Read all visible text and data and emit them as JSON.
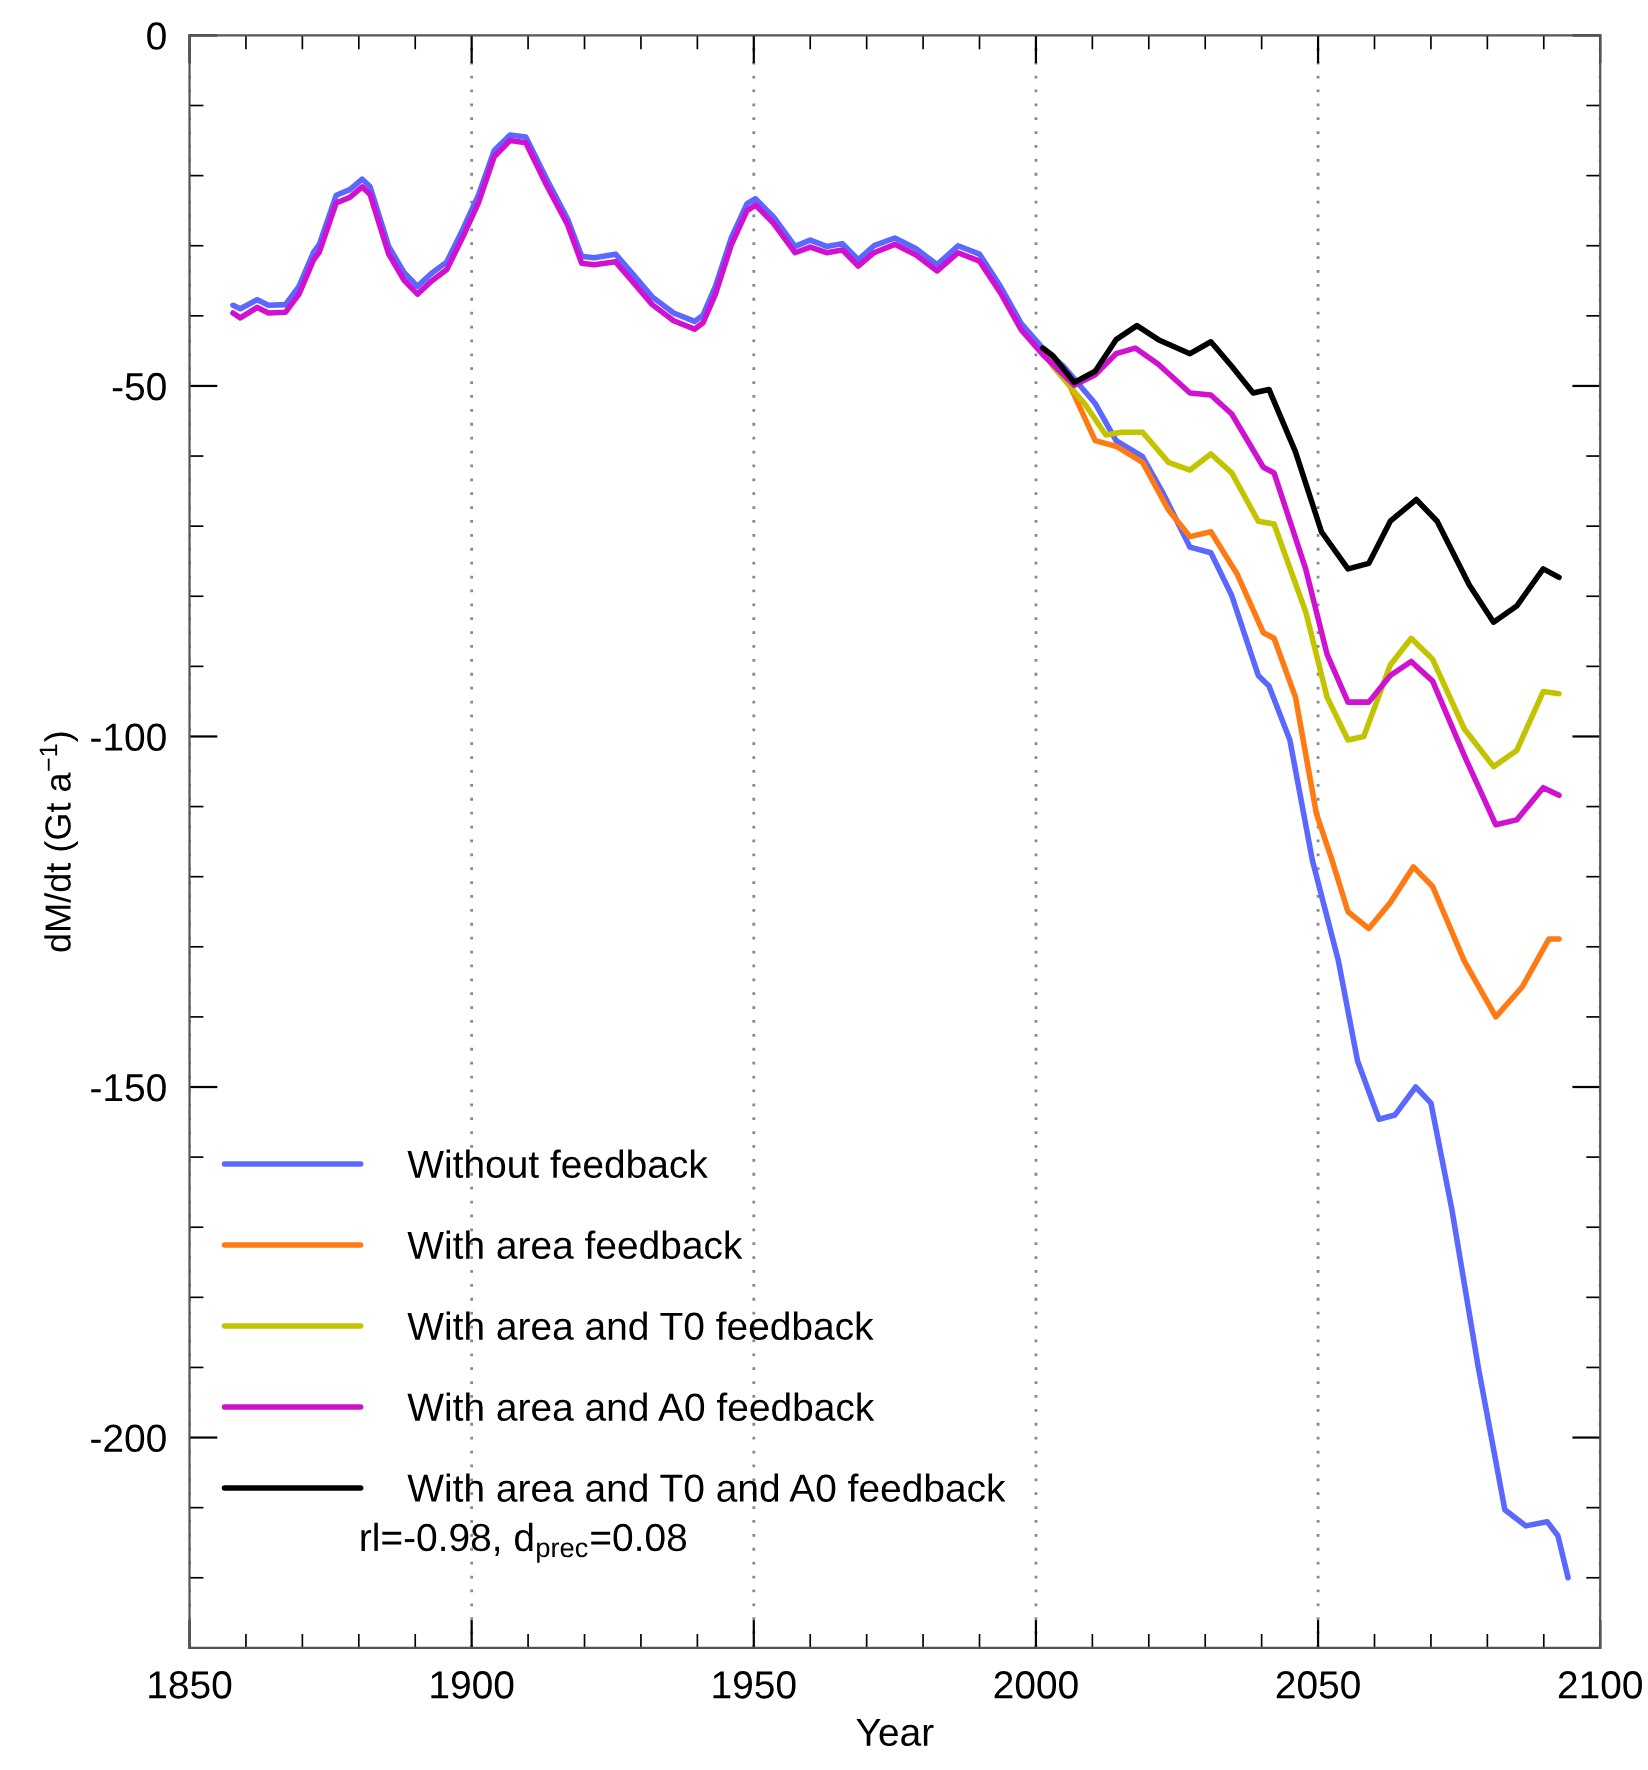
{
  "chart_data": {
    "type": "line",
    "xlabel": "Year",
    "ylabel": "dM/dt (Gt a$^{−1}$)",
    "xlim": [
      1850,
      2100
    ],
    "xticks": [
      1850,
      1900,
      1950,
      2000,
      2050,
      2100
    ],
    "ylim": [
      -230,
      0
    ],
    "yticks": [
      -200,
      -150,
      -100,
      -50,
      0
    ],
    "grid": "x",
    "legend": "bottom left",
    "line_style": "solid",
    "marker": "none",
    "annotations": [
      "rl=-0.98, d$_{prec}$=0.08"
    ],
    "series": [
      {
        "name": "Without feedback",
        "color": "#5b68ff",
        "x": [
          1857.7,
          1859,
          1862,
          1864,
          1867,
          1869.4,
          1872,
          1873,
          1876,
          1878.4,
          1880.6,
          1882,
          1885.3,
          1888,
          1890.4,
          1892.8,
          1895.6,
          1898.4,
          1901.2,
          1904,
          1906.8,
          1909.6,
          1913.3,
          1917,
          1919.5,
          1921.7,
          1925.5,
          1928.3,
          1932,
          1935.8,
          1939.5,
          1941,
          1943.2,
          1946,
          1948.8,
          1950.3,
          1953.5,
          1957.3,
          1960,
          1962.9,
          1965.7,
          1968.5,
          1971.3,
          1975,
          1978.7,
          1982.5,
          1986.2,
          1990,
          1993.7,
          1997.4,
          2001.2,
          2004.9,
          2010.5,
          2014.2,
          2018.9,
          2022.6,
          2027.3,
          2031,
          2034.7,
          2039.4,
          2041.3,
          2045,
          2049,
          2053.6,
          2057,
          2060.8,
          2063.6,
          2067.3,
          2070,
          2073.7,
          2078.4,
          2083.1,
          2086.8,
          2090.6,
          2092.5,
          2094.3
        ],
        "values": [
          -38.5,
          -39,
          -37.7,
          -38.5,
          -38.4,
          -35.8,
          -30.9,
          -29.8,
          -22.8,
          -22,
          -20.5,
          -21.6,
          -30.1,
          -33.8,
          -35.8,
          -34,
          -32.3,
          -27.7,
          -22.8,
          -16.4,
          -14.2,
          -14.5,
          -20.5,
          -26.2,
          -31.5,
          -31.7,
          -31.2,
          -33.8,
          -37.3,
          -39.6,
          -40.8,
          -39.9,
          -35.8,
          -28.9,
          -24,
          -23.3,
          -25.9,
          -30.1,
          -29.2,
          -30.1,
          -29.7,
          -32,
          -30,
          -28.9,
          -30.4,
          -32.7,
          -30,
          -31.2,
          -35.8,
          -41.1,
          -44.6,
          -47.2,
          -52.5,
          -57.8,
          -60.1,
          -65.4,
          -73,
          -73.8,
          -79.9,
          -91.3,
          -92.8,
          -100.5,
          -117.7,
          -132,
          -146.3,
          -154.6,
          -154,
          -150,
          -152.3,
          -167.4,
          -190,
          -210.3,
          -212.6,
          -212,
          -214,
          -220
        ]
      },
      {
        "name": "With area feedback",
        "color": "#ff7a12",
        "x": [
          2001.2,
          2004.9,
          2010.5,
          2014.2,
          2018.9,
          2023.5,
          2027.3,
          2031,
          2035.7,
          2040.3,
          2042.2,
          2046,
          2049.7,
          2052.5,
          2055.3,
          2059,
          2062.8,
          2066.9,
          2070.3,
          2075.9,
          2081.5,
          2086.2,
          2090.9,
          2092.7
        ],
        "values": [
          -45,
          -48,
          -57.8,
          -58.6,
          -60.9,
          -67.7,
          -71.5,
          -70.8,
          -76.9,
          -85.2,
          -86,
          -94.4,
          -111,
          -117.7,
          -125,
          -127.4,
          -123.7,
          -118.6,
          -121.4,
          -132,
          -140,
          -135.7,
          -128.9,
          -128.9
        ]
      },
      {
        "name": "With area and T0 feedback",
        "color": "#c2c400",
        "x": [
          2001.2,
          2003,
          2008.6,
          2012.4,
          2015.1,
          2018.9,
          2023.5,
          2027.3,
          2031,
          2034.7,
          2039.4,
          2042.2,
          2047.8,
          2051.6,
          2055.3,
          2058.1,
          2062.8,
          2066.5,
          2070.3,
          2075.9,
          2081.1,
          2085.2,
          2089.9,
          2092.7
        ],
        "values": [
          -45,
          -47.2,
          -52.5,
          -57,
          -56.6,
          -56.6,
          -60.9,
          -62,
          -59.7,
          -62.4,
          -69.3,
          -69.7,
          -82.2,
          -94.4,
          -100.5,
          -100,
          -89.8,
          -86,
          -89,
          -98.9,
          -104.3,
          -102,
          -93.6,
          -93.9
        ]
      },
      {
        "name": "With area and A0 feedback",
        "color": "#d012d0",
        "x": [
          1857.7,
          1859,
          1862,
          1864,
          1867,
          1869.4,
          1872,
          1873,
          1876,
          1878.4,
          1880.6,
          1882,
          1885.3,
          1888,
          1890.4,
          1892.8,
          1895.6,
          1898.4,
          1901.2,
          1904,
          1906.8,
          1909.6,
          1913.3,
          1917,
          1919.5,
          1921.7,
          1925.5,
          1928.3,
          1932,
          1935.8,
          1939.5,
          1941,
          1943.2,
          1946,
          1948.8,
          1950.3,
          1953.5,
          1957.3,
          1960,
          1962.9,
          1965.7,
          1968.5,
          1971.3,
          1975,
          1978.7,
          1982.5,
          1986.2,
          1990,
          1993.7,
          1997.4,
          2001.2,
          2006.8,
          2010.5,
          2014.2,
          2017.6,
          2021.7,
          2027.3,
          2031,
          2034.7,
          2040.3,
          2042.2,
          2047.8,
          2051.6,
          2055.3,
          2059,
          2062.8,
          2066.5,
          2070.3,
          2075.9,
          2081.5,
          2085.2,
          2089.9,
          2092.7
        ],
        "values": [
          -39.6,
          -40.3,
          -38.8,
          -39.6,
          -39.5,
          -36.9,
          -32,
          -30.9,
          -23.9,
          -23.1,
          -21.6,
          -22.7,
          -31.2,
          -34.9,
          -36.9,
          -35.1,
          -33.4,
          -28.8,
          -23.9,
          -17.3,
          -15,
          -15.3,
          -21.4,
          -27,
          -32.5,
          -32.7,
          -32.3,
          -34.9,
          -38.4,
          -40.7,
          -41.9,
          -41,
          -36.9,
          -29.9,
          -25,
          -24.2,
          -26.8,
          -31,
          -30.2,
          -31,
          -30.6,
          -32.9,
          -31,
          -29.8,
          -31.3,
          -33.6,
          -31,
          -32.2,
          -36.7,
          -42,
          -45.5,
          -49.9,
          -48.4,
          -45.4,
          -44.6,
          -46.9,
          -51,
          -51.3,
          -54,
          -61.6,
          -62.4,
          -76.1,
          -88.3,
          -95.1,
          -95.1,
          -91.3,
          -89.3,
          -92.1,
          -102.7,
          -112.6,
          -111.9,
          -107.3,
          -108.4
        ]
      },
      {
        "name": "With area and T0 and A0 feedback",
        "color": "#000000",
        "x": [
          2001.2,
          2003,
          2006.8,
          2010.5,
          2014.2,
          2017.9,
          2021.7,
          2027.3,
          2031,
          2034.7,
          2038.5,
          2041.3,
          2046,
          2050.6,
          2055.3,
          2059,
          2062.8,
          2067.4,
          2071.1,
          2076.8,
          2081.1,
          2085.2,
          2089.9,
          2092.7
        ],
        "values": [
          -44.6,
          -45.7,
          -49.5,
          -47.9,
          -43.4,
          -41.4,
          -43.4,
          -45.4,
          -43.7,
          -47.2,
          -51,
          -50.5,
          -59.4,
          -70.8,
          -76.1,
          -75.3,
          -69.3,
          -66.2,
          -69.3,
          -78.4,
          -83.7,
          -81.4,
          -76.1,
          -77.3
        ]
      }
    ]
  }
}
